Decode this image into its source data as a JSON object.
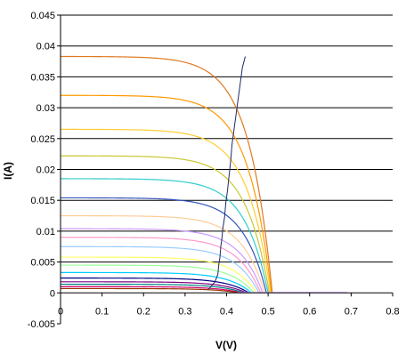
{
  "chart_data": {
    "type": "line",
    "title": "",
    "xlabel": "V(V)",
    "ylabel": "I(A)",
    "xlim": [
      0,
      0.8
    ],
    "ylim": [
      -0.005,
      0.045
    ],
    "x_ticks": [
      "0",
      "0.1",
      "0.2",
      "0.3",
      "0.4",
      "0.5",
      "0.6",
      "0.7",
      "0.8"
    ],
    "y_ticks": [
      "-0.005",
      "0",
      "0.005",
      "0.01",
      "0.015",
      "0.02",
      "0.025",
      "0.03",
      "0.035",
      "0.04",
      "0.045"
    ],
    "gridlines": "horizontal",
    "legend": "none",
    "series": [
      {
        "isc": 0.0383,
        "voc": 0.51,
        "color": "#E07820"
      },
      {
        "isc": 0.032,
        "voc": 0.508,
        "color": "#FF9900"
      },
      {
        "isc": 0.0265,
        "voc": 0.506,
        "color": "#FFCC33"
      },
      {
        "isc": 0.0222,
        "voc": 0.503,
        "color": "#C8C832"
      },
      {
        "isc": 0.0185,
        "voc": 0.5,
        "color": "#33CCCC"
      },
      {
        "isc": 0.0154,
        "voc": 0.496,
        "color": "#3355BB"
      },
      {
        "isc": 0.0125,
        "voc": 0.492,
        "color": "#FFCC99"
      },
      {
        "isc": 0.0104,
        "voc": 0.487,
        "color": "#CC99FF"
      },
      {
        "isc": 0.009,
        "voc": 0.482,
        "color": "#FF99CC"
      },
      {
        "isc": 0.0075,
        "voc": 0.478,
        "color": "#99CCFF"
      },
      {
        "isc": 0.0058,
        "voc": 0.472,
        "color": "#FFFF66"
      },
      {
        "isc": 0.0045,
        "voc": 0.466,
        "color": "#99FF99"
      },
      {
        "isc": 0.0033,
        "voc": 0.46,
        "color": "#00CCFF"
      },
      {
        "isc": 0.0024,
        "voc": 0.454,
        "color": "#000080"
      },
      {
        "isc": 0.0018,
        "voc": 0.448,
        "color": "#800080"
      },
      {
        "isc": 0.0014,
        "voc": 0.442,
        "color": "#008080"
      },
      {
        "isc": 0.001,
        "voc": 0.436,
        "color": "#CC0066"
      },
      {
        "isc": 0.0007,
        "voc": 0.43,
        "color": "#993300"
      }
    ],
    "mpp_curve": {
      "color": "#1F2A66",
      "x": [
        0.355,
        0.362,
        0.372,
        0.379,
        0.381,
        0.384,
        0.386,
        0.389,
        0.391,
        0.395,
        0.398,
        0.402,
        0.406,
        0.41,
        0.413,
        0.418,
        0.423,
        0.428,
        0.433,
        0.438,
        0.445
      ],
      "y": [
        0.0005,
        0.001,
        0.0018,
        0.003,
        0.0045,
        0.0058,
        0.0075,
        0.009,
        0.0105,
        0.0122,
        0.0145,
        0.0165,
        0.019,
        0.0215,
        0.024,
        0.0265,
        0.029,
        0.0315,
        0.034,
        0.0365,
        0.0383
      ]
    },
    "tail": {
      "color": "#CC99FF",
      "x": [
        0.425,
        0.69
      ],
      "y": [
        0.0,
        0.0
      ]
    }
  }
}
